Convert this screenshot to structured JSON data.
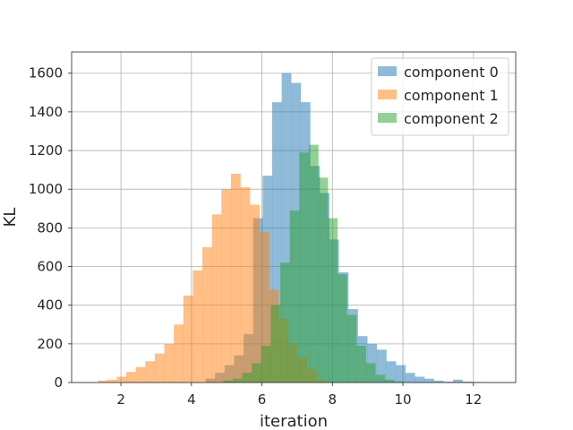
{
  "chart_data": {
    "type": "bar",
    "subtype": "overlaid-histogram",
    "title": "",
    "xlabel": "iteration",
    "ylabel": "KL",
    "xlim": [
      0.6,
      13.2
    ],
    "ylim": [
      0,
      1710
    ],
    "xticks": [
      2,
      4,
      6,
      8,
      10,
      12
    ],
    "yticks": [
      0,
      200,
      400,
      600,
      800,
      1000,
      1200,
      1400,
      1600
    ],
    "grid": true,
    "legend_position": "upper right",
    "bin_width": 0.27,
    "series": [
      {
        "name": "component 0",
        "color": "#1f77b4",
        "alpha": 0.5,
        "bin_starts": [
          4.4,
          4.67,
          4.94,
          5.21,
          5.48,
          5.75,
          6.02,
          6.29,
          6.56,
          6.83,
          7.1,
          7.37,
          7.64,
          7.91,
          8.18,
          8.45,
          8.72,
          8.99,
          9.26,
          9.53,
          9.8,
          10.07,
          10.34,
          10.61,
          10.88,
          11.15,
          11.42,
          11.69,
          11.96,
          12.23
        ],
        "values": [
          20,
          50,
          90,
          140,
          250,
          850,
          1070,
          1450,
          1600,
          1550,
          1450,
          1120,
          980,
          740,
          570,
          380,
          240,
          200,
          170,
          110,
          90,
          50,
          30,
          20,
          10,
          5,
          15,
          5,
          3,
          1
        ]
      },
      {
        "name": "component 1",
        "color": "#ff7f0e",
        "alpha": 0.5,
        "bin_starts": [
          1.34,
          1.61,
          1.88,
          2.15,
          2.42,
          2.69,
          2.96,
          3.23,
          3.5,
          3.77,
          4.04,
          4.31,
          4.58,
          4.85,
          5.12,
          5.39,
          5.66,
          5.93,
          6.2,
          6.47,
          6.74,
          7.01,
          7.28,
          7.55
        ],
        "values": [
          10,
          15,
          30,
          55,
          80,
          110,
          150,
          200,
          300,
          450,
          580,
          700,
          870,
          1000,
          1080,
          1010,
          920,
          780,
          480,
          330,
          200,
          130,
          70,
          15
        ]
      },
      {
        "name": "component 2",
        "color": "#2ca02c",
        "alpha": 0.5,
        "bin_starts": [
          4.9,
          5.17,
          5.44,
          5.71,
          5.98,
          6.25,
          6.52,
          6.79,
          7.06,
          7.33,
          7.6,
          7.87,
          8.14,
          8.41,
          8.68,
          8.95,
          9.22,
          9.49,
          9.76
        ],
        "values": [
          10,
          20,
          50,
          100,
          190,
          400,
          620,
          890,
          1190,
          1230,
          1060,
          850,
          560,
          350,
          190,
          100,
          40,
          15,
          5
        ]
      }
    ]
  }
}
